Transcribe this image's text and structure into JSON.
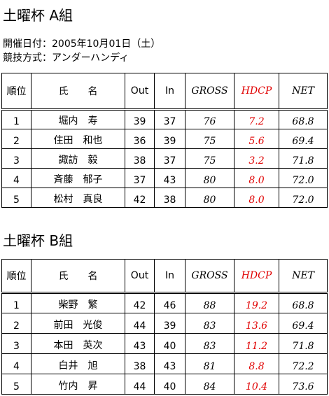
{
  "info": {
    "date": "開催日付：2005年10月01日（土）",
    "format": "競技方式：アンダーハンディ"
  },
  "sections": [
    {
      "title": "土曜杯 A組",
      "table": {
        "header": [
          "順位",
          "氏　　名",
          "Out",
          "In",
          "GROSS",
          "HDCP",
          "NET"
        ],
        "rows": [
          [
            "1",
            "堀内　寿",
            "39",
            "37",
            "76",
            "7.2",
            "68.8"
          ],
          [
            "2",
            "住田　和也",
            "36",
            "39",
            "75",
            "5.6",
            "69.4"
          ],
          [
            "3",
            "諏訪　毅",
            "38",
            "37",
            "75",
            "3.2",
            "71.8"
          ],
          [
            "4",
            "斉藤　郁子",
            "37",
            "43",
            "80",
            "8.0",
            "72.0"
          ],
          [
            "5",
            "松村　真良",
            "42",
            "38",
            "80",
            "8.0",
            "72.0"
          ]
        ]
      }
    },
    {
      "title": "土曜杯 B組",
      "table": {
        "header": [
          "順位",
          "氏　　名",
          "Out",
          "In",
          "GROSS",
          "HDCP",
          "NET"
        ],
        "rows": [
          [
            "1",
            "柴野　繁",
            "42",
            "46",
            "88",
            "19.2",
            "68.8"
          ],
          [
            "2",
            "前田　光俊",
            "44",
            "39",
            "83",
            "13.6",
            "69.4"
          ],
          [
            "3",
            "本田　英次",
            "43",
            "40",
            "83",
            "11.2",
            "71.8"
          ],
          [
            "4",
            "白井　旭",
            "38",
            "43",
            "81",
            "8.8",
            "72.2"
          ],
          [
            "5",
            "竹内　昇",
            "44",
            "40",
            "84",
            "10.4",
            "73.6"
          ]
        ]
      }
    }
  ]
}
